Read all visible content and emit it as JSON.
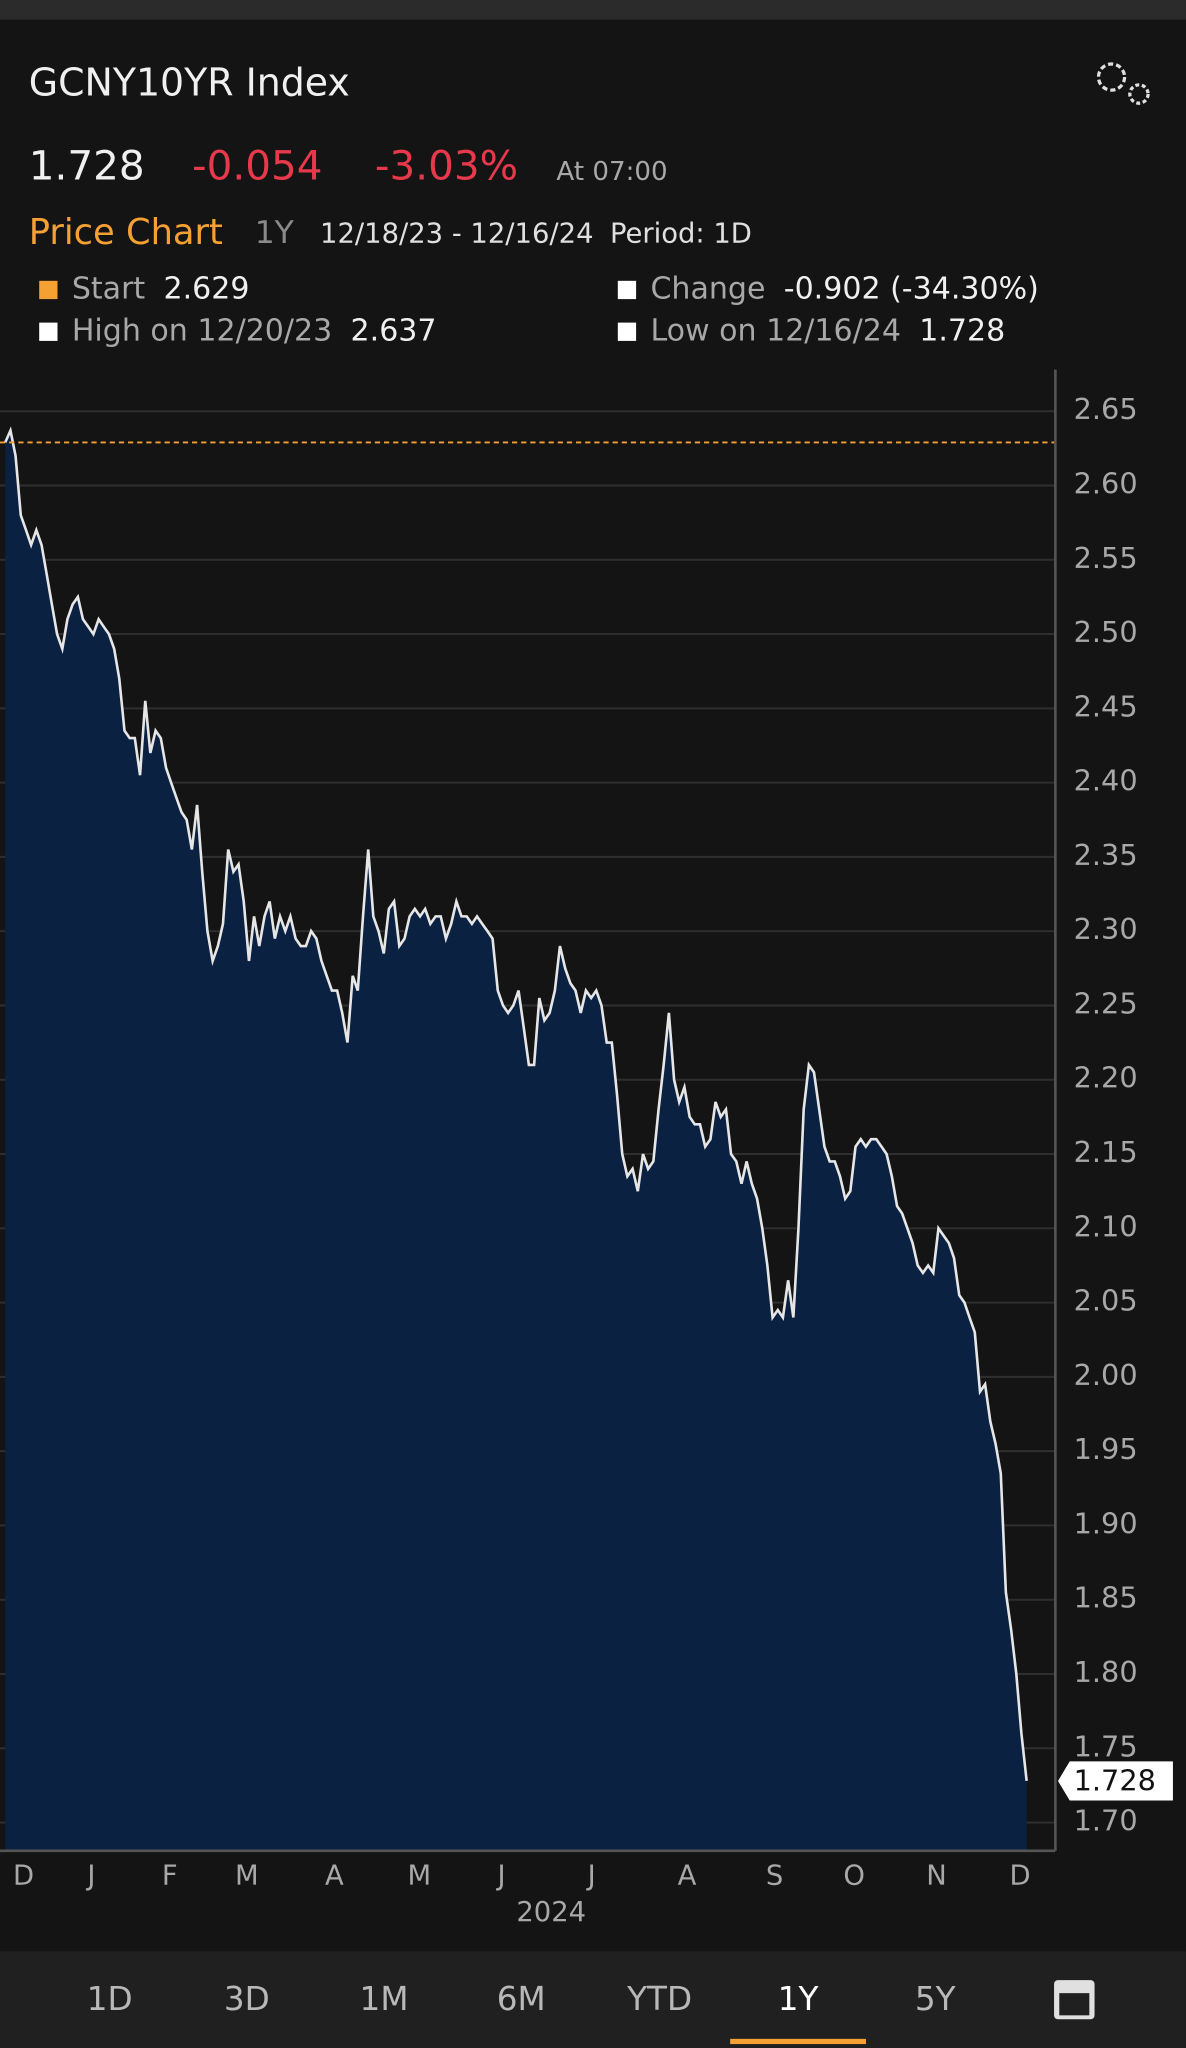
{
  "header": {
    "title": "GCNY10YR Index",
    "price": "1.728",
    "change": "-0.054",
    "change_pct": "-3.03%",
    "time": "At 07:00",
    "chart_label": "Price Chart",
    "range": "1Y",
    "dates": "12/18/23 - 12/16/24",
    "period": "Period: 1D"
  },
  "stats": [
    {
      "label": "Start",
      "value": 2.629,
      "color": "#f5a033"
    },
    {
      "label": "Change",
      "value": "-0.902 (-34.30%)",
      "color": "#ffffff"
    },
    {
      "label": "High on 12/20/23",
      "value": 2.637,
      "color": "#ffffff"
    },
    {
      "label": "Low on 12/16/24",
      "value": 1.728,
      "color": "#ffffff"
    }
  ],
  "tabs": [
    "1D",
    "3D",
    "1M",
    "6M",
    "YTD",
    "1Y",
    "5Y"
  ],
  "selected_tab": 5,
  "chart_data": {
    "type": "area",
    "line_color": "#e6e6e6",
    "fill_color": "#0b2142",
    "months": [
      "D",
      "J",
      "F",
      "M",
      "A",
      "M",
      "J",
      "J",
      "A",
      "S",
      "O",
      "N",
      "D"
    ],
    "year": "2024",
    "series": [
      {
        "name": "GCNY10YR Index",
        "values": [
          2.629,
          2.637,
          2.62,
          2.58,
          2.57,
          2.56,
          2.57,
          2.56,
          2.54,
          2.52,
          2.5,
          2.49,
          2.51,
          2.52,
          2.525,
          2.51,
          2.505,
          2.5,
          2.51,
          2.505,
          2.5,
          2.49,
          2.47,
          2.435,
          2.43,
          2.43,
          2.405,
          2.455,
          2.42,
          2.435,
          2.43,
          2.41,
          2.4,
          2.39,
          2.38,
          2.375,
          2.355,
          2.385,
          2.34,
          2.3,
          2.28,
          2.29,
          2.305,
          2.355,
          2.34,
          2.345,
          2.32,
          2.28,
          2.31,
          2.29,
          2.31,
          2.32,
          2.295,
          2.31,
          2.3,
          2.31,
          2.295,
          2.29,
          2.29,
          2.3,
          2.295,
          2.28,
          2.27,
          2.26,
          2.26,
          2.245,
          2.225,
          2.27,
          2.26,
          2.31,
          2.355,
          2.31,
          2.3,
          2.285,
          2.315,
          2.32,
          2.29,
          2.295,
          2.31,
          2.315,
          2.31,
          2.315,
          2.305,
          2.31,
          2.31,
          2.295,
          2.305,
          2.32,
          2.31,
          2.31,
          2.305,
          2.31,
          2.305,
          2.3,
          2.295,
          2.26,
          2.25,
          2.245,
          2.25,
          2.26,
          2.235,
          2.21,
          2.21,
          2.255,
          2.24,
          2.245,
          2.26,
          2.29,
          2.275,
          2.265,
          2.26,
          2.245,
          2.26,
          2.255,
          2.26,
          2.25,
          2.225,
          2.225,
          2.19,
          2.15,
          2.135,
          2.14,
          2.125,
          2.15,
          2.14,
          2.145,
          2.18,
          2.21,
          2.245,
          2.2,
          2.185,
          2.195,
          2.175,
          2.17,
          2.17,
          2.155,
          2.16,
          2.185,
          2.175,
          2.18,
          2.15,
          2.145,
          2.13,
          2.145,
          2.13,
          2.12,
          2.1,
          2.075,
          2.04,
          2.045,
          2.04,
          2.065,
          2.04,
          2.1,
          2.18,
          2.21,
          2.205,
          2.18,
          2.155,
          2.145,
          2.145,
          2.135,
          2.12,
          2.125,
          2.155,
          2.16,
          2.155,
          2.16,
          2.16,
          2.155,
          2.15,
          2.135,
          2.115,
          2.11,
          2.1,
          2.09,
          2.075,
          2.07,
          2.075,
          2.07,
          2.1,
          2.095,
          2.09,
          2.08,
          2.055,
          2.05,
          2.04,
          2.03,
          1.99,
          1.995,
          1.97,
          1.955,
          1.935,
          1.855,
          1.83,
          1.8,
          1.76,
          1.728
        ]
      }
    ],
    "ylim": [
      1.681,
      2.678
    ],
    "yticks": [
      {
        "value": 1.7,
        "label": "1.70"
      },
      1.75,
      {
        "value": 1.8,
        "label": "1.80"
      },
      1.85,
      {
        "value": 1.9,
        "label": "1.90"
      },
      1.95,
      {
        "value": 2.0,
        "label": "2.00"
      },
      2.05,
      {
        "value": 2.1,
        "label": "2.10"
      },
      2.15,
      {
        "value": 2.2,
        "label": "2.20"
      },
      2.25,
      {
        "value": 2.3,
        "label": "2.30"
      },
      2.35,
      {
        "value": 2.4,
        "label": "2.40"
      },
      2.45,
      {
        "value": 2.5,
        "label": "2.50"
      },
      2.55,
      {
        "value": 2.6,
        "label": "2.60"
      },
      2.65
    ],
    "grid": true
  }
}
